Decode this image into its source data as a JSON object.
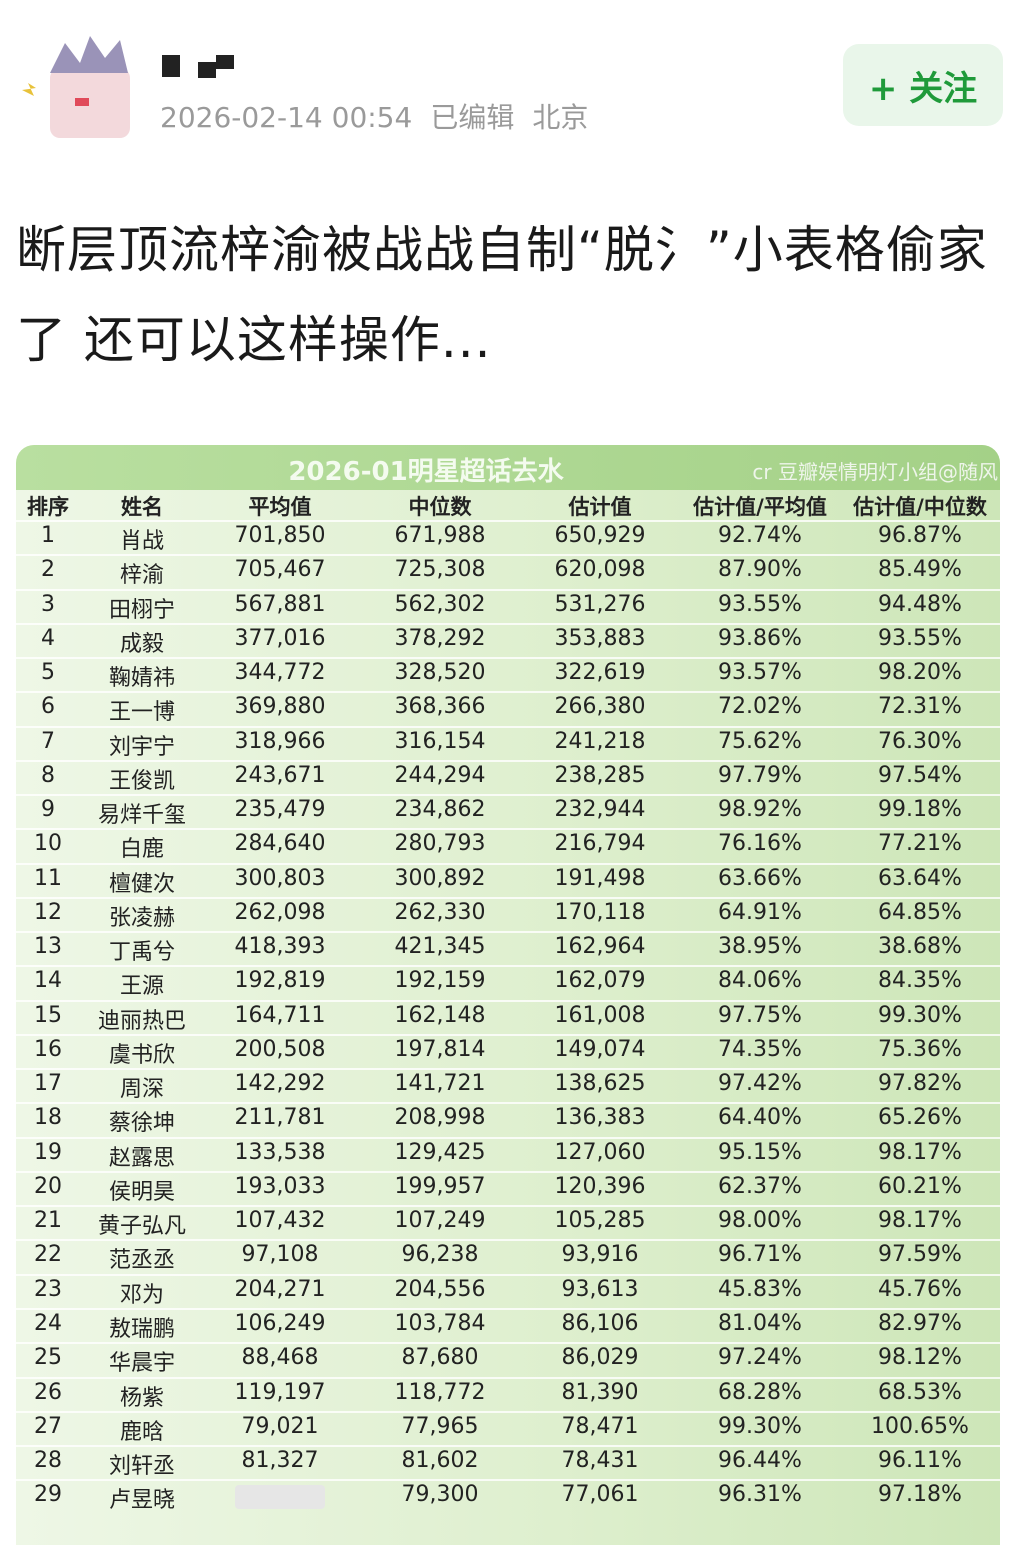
{
  "post": {
    "date": "2026-02-14 00:54",
    "edited": "已编辑",
    "location": "北京",
    "follow_button": "+ 关注",
    "title": "断层顶流梓渝被战战自制“脱氵”小表格偷家了 还可以这样操作..."
  },
  "table": {
    "title": "2026-01明星超话去水",
    "credit": "cr 豆瓣娱情明灯小组@随风",
    "columns": [
      "排序",
      "姓名",
      "平均值",
      "中位数",
      "估计值",
      "估计值/平均值",
      "估计值/中位数"
    ],
    "rows": [
      [
        "1",
        "肖战",
        "701,850",
        "671,988",
        "650,929",
        "92.74%",
        "96.87%"
      ],
      [
        "2",
        "梓渝",
        "705,467",
        "725,308",
        "620,098",
        "87.90%",
        "85.49%"
      ],
      [
        "3",
        "田栩宁",
        "567,881",
        "562,302",
        "531,276",
        "93.55%",
        "94.48%"
      ],
      [
        "4",
        "成毅",
        "377,016",
        "378,292",
        "353,883",
        "93.86%",
        "93.55%"
      ],
      [
        "5",
        "鞠婧祎",
        "344,772",
        "328,520",
        "322,619",
        "93.57%",
        "98.20%"
      ],
      [
        "6",
        "王一博",
        "369,880",
        "368,366",
        "266,380",
        "72.02%",
        "72.31%"
      ],
      [
        "7",
        "刘宇宁",
        "318,966",
        "316,154",
        "241,218",
        "75.62%",
        "76.30%"
      ],
      [
        "8",
        "王俊凯",
        "243,671",
        "244,294",
        "238,285",
        "97.79%",
        "97.54%"
      ],
      [
        "9",
        "易烊千玺",
        "235,479",
        "234,862",
        "232,944",
        "98.92%",
        "99.18%"
      ],
      [
        "10",
        "白鹿",
        "284,640",
        "280,793",
        "216,794",
        "76.16%",
        "77.21%"
      ],
      [
        "11",
        "檀健次",
        "300,803",
        "300,892",
        "191,498",
        "63.66%",
        "63.64%"
      ],
      [
        "12",
        "张凌赫",
        "262,098",
        "262,330",
        "170,118",
        "64.91%",
        "64.85%"
      ],
      [
        "13",
        "丁禹兮",
        "418,393",
        "421,345",
        "162,964",
        "38.95%",
        "38.68%"
      ],
      [
        "14",
        "王源",
        "192,819",
        "192,159",
        "162,079",
        "84.06%",
        "84.35%"
      ],
      [
        "15",
        "迪丽热巴",
        "164,711",
        "162,148",
        "161,008",
        "97.75%",
        "99.30%"
      ],
      [
        "16",
        "虞书欣",
        "200,508",
        "197,814",
        "149,074",
        "74.35%",
        "75.36%"
      ],
      [
        "17",
        "周深",
        "142,292",
        "141,721",
        "138,625",
        "97.42%",
        "97.82%"
      ],
      [
        "18",
        "蔡徐坤",
        "211,781",
        "208,998",
        "136,383",
        "64.40%",
        "65.26%"
      ],
      [
        "19",
        "赵露思",
        "133,538",
        "129,425",
        "127,060",
        "95.15%",
        "98.17%"
      ],
      [
        "20",
        "侯明昊",
        "193,033",
        "199,957",
        "120,396",
        "62.37%",
        "60.21%"
      ],
      [
        "21",
        "黄子弘凡",
        "107,432",
        "107,249",
        "105,285",
        "98.00%",
        "98.17%"
      ],
      [
        "22",
        "范丞丞",
        "97,108",
        "96,238",
        "93,916",
        "96.71%",
        "97.59%"
      ],
      [
        "23",
        "邓为",
        "204,271",
        "204,556",
        "93,613",
        "45.83%",
        "45.76%"
      ],
      [
        "24",
        "敖瑞鹏",
        "106,249",
        "103,784",
        "86,106",
        "81.04%",
        "82.97%"
      ],
      [
        "25",
        "华晨宇",
        "88,468",
        "87,680",
        "86,029",
        "97.24%",
        "98.12%"
      ],
      [
        "26",
        "杨紫",
        "119,197",
        "118,772",
        "81,390",
        "68.28%",
        "68.53%"
      ],
      [
        "27",
        "鹿晗",
        "79,021",
        "77,965",
        "78,471",
        "99.30%",
        "100.65%"
      ],
      [
        "28",
        "刘轩丞",
        "81,327",
        "81,602",
        "78,431",
        "96.44%",
        "96.11%"
      ],
      [
        "29",
        "卢昱晓",
        null,
        "79,300",
        "77,061",
        "96.31%",
        "97.18%"
      ]
    ]
  }
}
